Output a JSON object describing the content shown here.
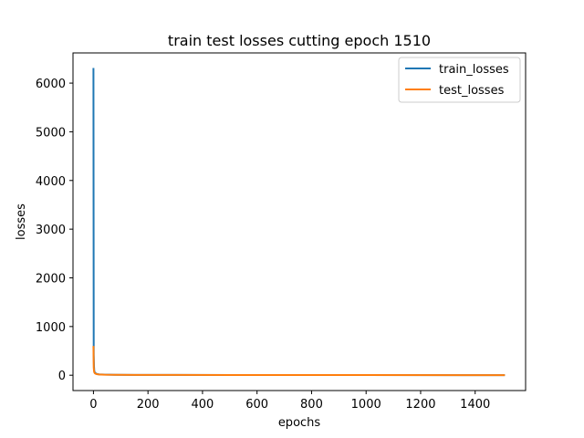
{
  "chart_data": {
    "type": "line",
    "title": "train test losses cutting epoch 1510",
    "xlabel": "epochs",
    "ylabel": "losses",
    "xlim": [
      -75,
      1585
    ],
    "ylim": [
      -315,
      6620
    ],
    "xticks": [
      0,
      200,
      400,
      600,
      800,
      1000,
      1200,
      1400
    ],
    "yticks": [
      0,
      1000,
      2000,
      3000,
      4000,
      5000,
      6000
    ],
    "grid": false,
    "legend_position": "upper right",
    "series": [
      {
        "name": "train_losses",
        "color": "#1f77b4",
        "x": [
          0,
          1,
          2,
          3,
          5,
          8,
          12,
          20,
          40,
          80,
          150,
          300,
          600,
          1000,
          1509
        ],
        "y": [
          6310,
          420,
          180,
          90,
          55,
          40,
          28,
          18,
          12,
          9,
          7,
          5,
          4,
          3,
          2
        ]
      },
      {
        "name": "test_losses",
        "color": "#ff7f0e",
        "x": [
          0,
          1,
          2,
          3,
          5,
          8,
          12,
          20,
          40,
          80,
          150,
          300,
          600,
          1000,
          1509
        ],
        "y": [
          600,
          160,
          90,
          60,
          40,
          30,
          22,
          15,
          10,
          8,
          6,
          5,
          4,
          3,
          2
        ]
      }
    ]
  }
}
